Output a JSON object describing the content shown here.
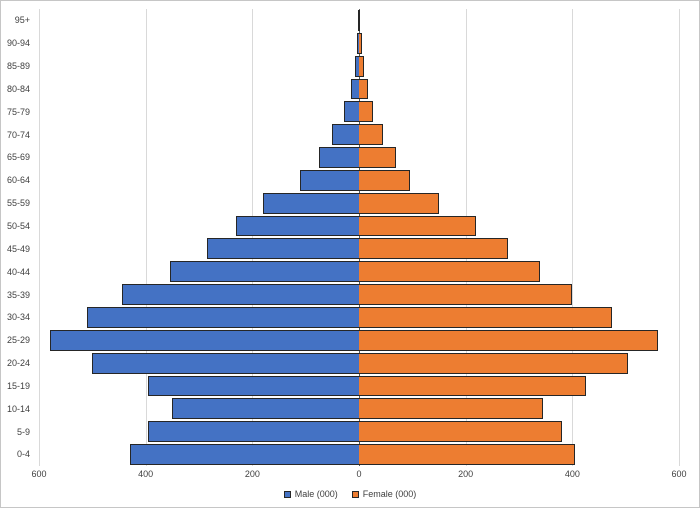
{
  "chart_data": {
    "type": "bar",
    "subtype": "population-pyramid",
    "orientation": "horizontal",
    "title": "",
    "grid": true,
    "categories_top_to_bottom": [
      "95+",
      "90-94",
      "85-89",
      "80-84",
      "75-79",
      "70-74",
      "65-69",
      "60-64",
      "55-59",
      "50-54",
      "45-49",
      "40-44",
      "35-39",
      "30-34",
      "25-29",
      "20-24",
      "15-19",
      "10-14",
      "5-9",
      "0-4"
    ],
    "series": [
      {
        "name": "Male (000)",
        "side": "left",
        "color": "#4472C4",
        "values": [
          2,
          4,
          8,
          15,
          28,
          50,
          75,
          110,
          180,
          230,
          285,
          355,
          445,
          510,
          580,
          500,
          395,
          350,
          395,
          430
        ]
      },
      {
        "name": "Female (000)",
        "side": "right",
        "color": "#ED7D31",
        "values": [
          2,
          5,
          9,
          16,
          26,
          45,
          70,
          95,
          150,
          220,
          280,
          340,
          400,
          475,
          560,
          505,
          425,
          345,
          380,
          405
        ]
      }
    ],
    "x_axis": {
      "ticks": [
        "600",
        "400",
        "200",
        "0",
        "200",
        "400",
        "600"
      ],
      "max": 600
    },
    "legend": {
      "position": "bottom",
      "entries": [
        "Male (000)",
        "Female (000)"
      ]
    }
  },
  "colors": {
    "male": "#4472C4",
    "female": "#ED7D31",
    "bar_border": "#262626",
    "gridline": "#d9d9d9",
    "axis_line": "#595959",
    "axis_text": "#404040",
    "chart_border": "#c6c6c6",
    "background": "#ffffff"
  }
}
